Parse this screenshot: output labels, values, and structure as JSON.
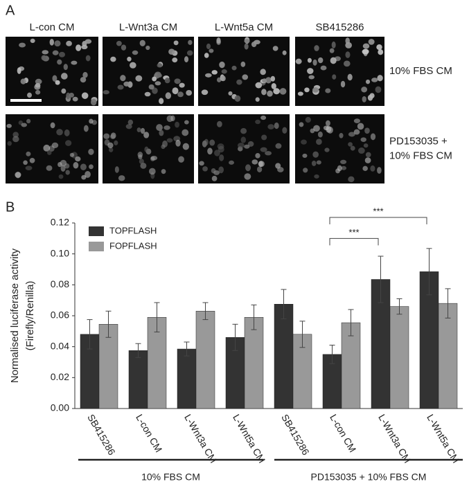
{
  "panel_a": {
    "label": "A",
    "columns": [
      "L-con CM",
      "L-Wnt3a CM",
      "L-Wnt5a CM",
      "SB415286"
    ],
    "rows": [
      [
        "10% FBS CM"
      ],
      [
        "PD153035 +",
        "10% FBS CM"
      ]
    ]
  },
  "chart_data": {
    "type": "bar",
    "panel_label": "B",
    "ylabel": [
      "Normalised luciferase activity",
      "(Firefly/Renilla)"
    ],
    "categories": [
      "SB415286",
      "L-con CM",
      "L-Wnt3a CM",
      "L-Wnt5a CM",
      "SB415286",
      "L-con CM",
      "L-Wnt3a CM",
      "L-Wnt5a CM"
    ],
    "groups": [
      "10% FBS CM",
      "PD153035 + 10% FBS CM"
    ],
    "series": [
      {
        "name": "TOPFLASH",
        "color": "#333333",
        "values": [
          0.048,
          0.0375,
          0.0385,
          0.046,
          0.0675,
          0.035,
          0.0835,
          0.0885
        ],
        "errors": [
          0.0095,
          0.0045,
          0.0045,
          0.0085,
          0.0095,
          0.006,
          0.015,
          0.015
        ]
      },
      {
        "name": "FOPFLASH",
        "color": "#999999",
        "values": [
          0.0545,
          0.059,
          0.063,
          0.059,
          0.048,
          0.0555,
          0.066,
          0.068
        ],
        "errors": [
          0.0085,
          0.0095,
          0.0055,
          0.008,
          0.0085,
          0.0085,
          0.005,
          0.0095
        ]
      }
    ],
    "ylim": [
      0,
      0.12
    ],
    "yticks": [
      {
        "value": 0,
        "label": "0.00"
      },
      {
        "value": 0.02,
        "label": "0.02"
      },
      {
        "value": 0.04,
        "label": "0.04"
      },
      {
        "value": 0.06,
        "label": "0.06"
      },
      {
        "value": 0.08,
        "label": "0.08"
      },
      {
        "value": 0.1,
        "label": "0.10"
      },
      {
        "value": 0.12,
        "label": "0.12"
      }
    ],
    "legend": "upper-left",
    "annotations": [
      {
        "text": "***",
        "between": [
          5,
          6
        ],
        "y": 0.11
      },
      {
        "text": "***",
        "between": [
          5,
          7
        ],
        "y": 0.1236
      }
    ]
  }
}
